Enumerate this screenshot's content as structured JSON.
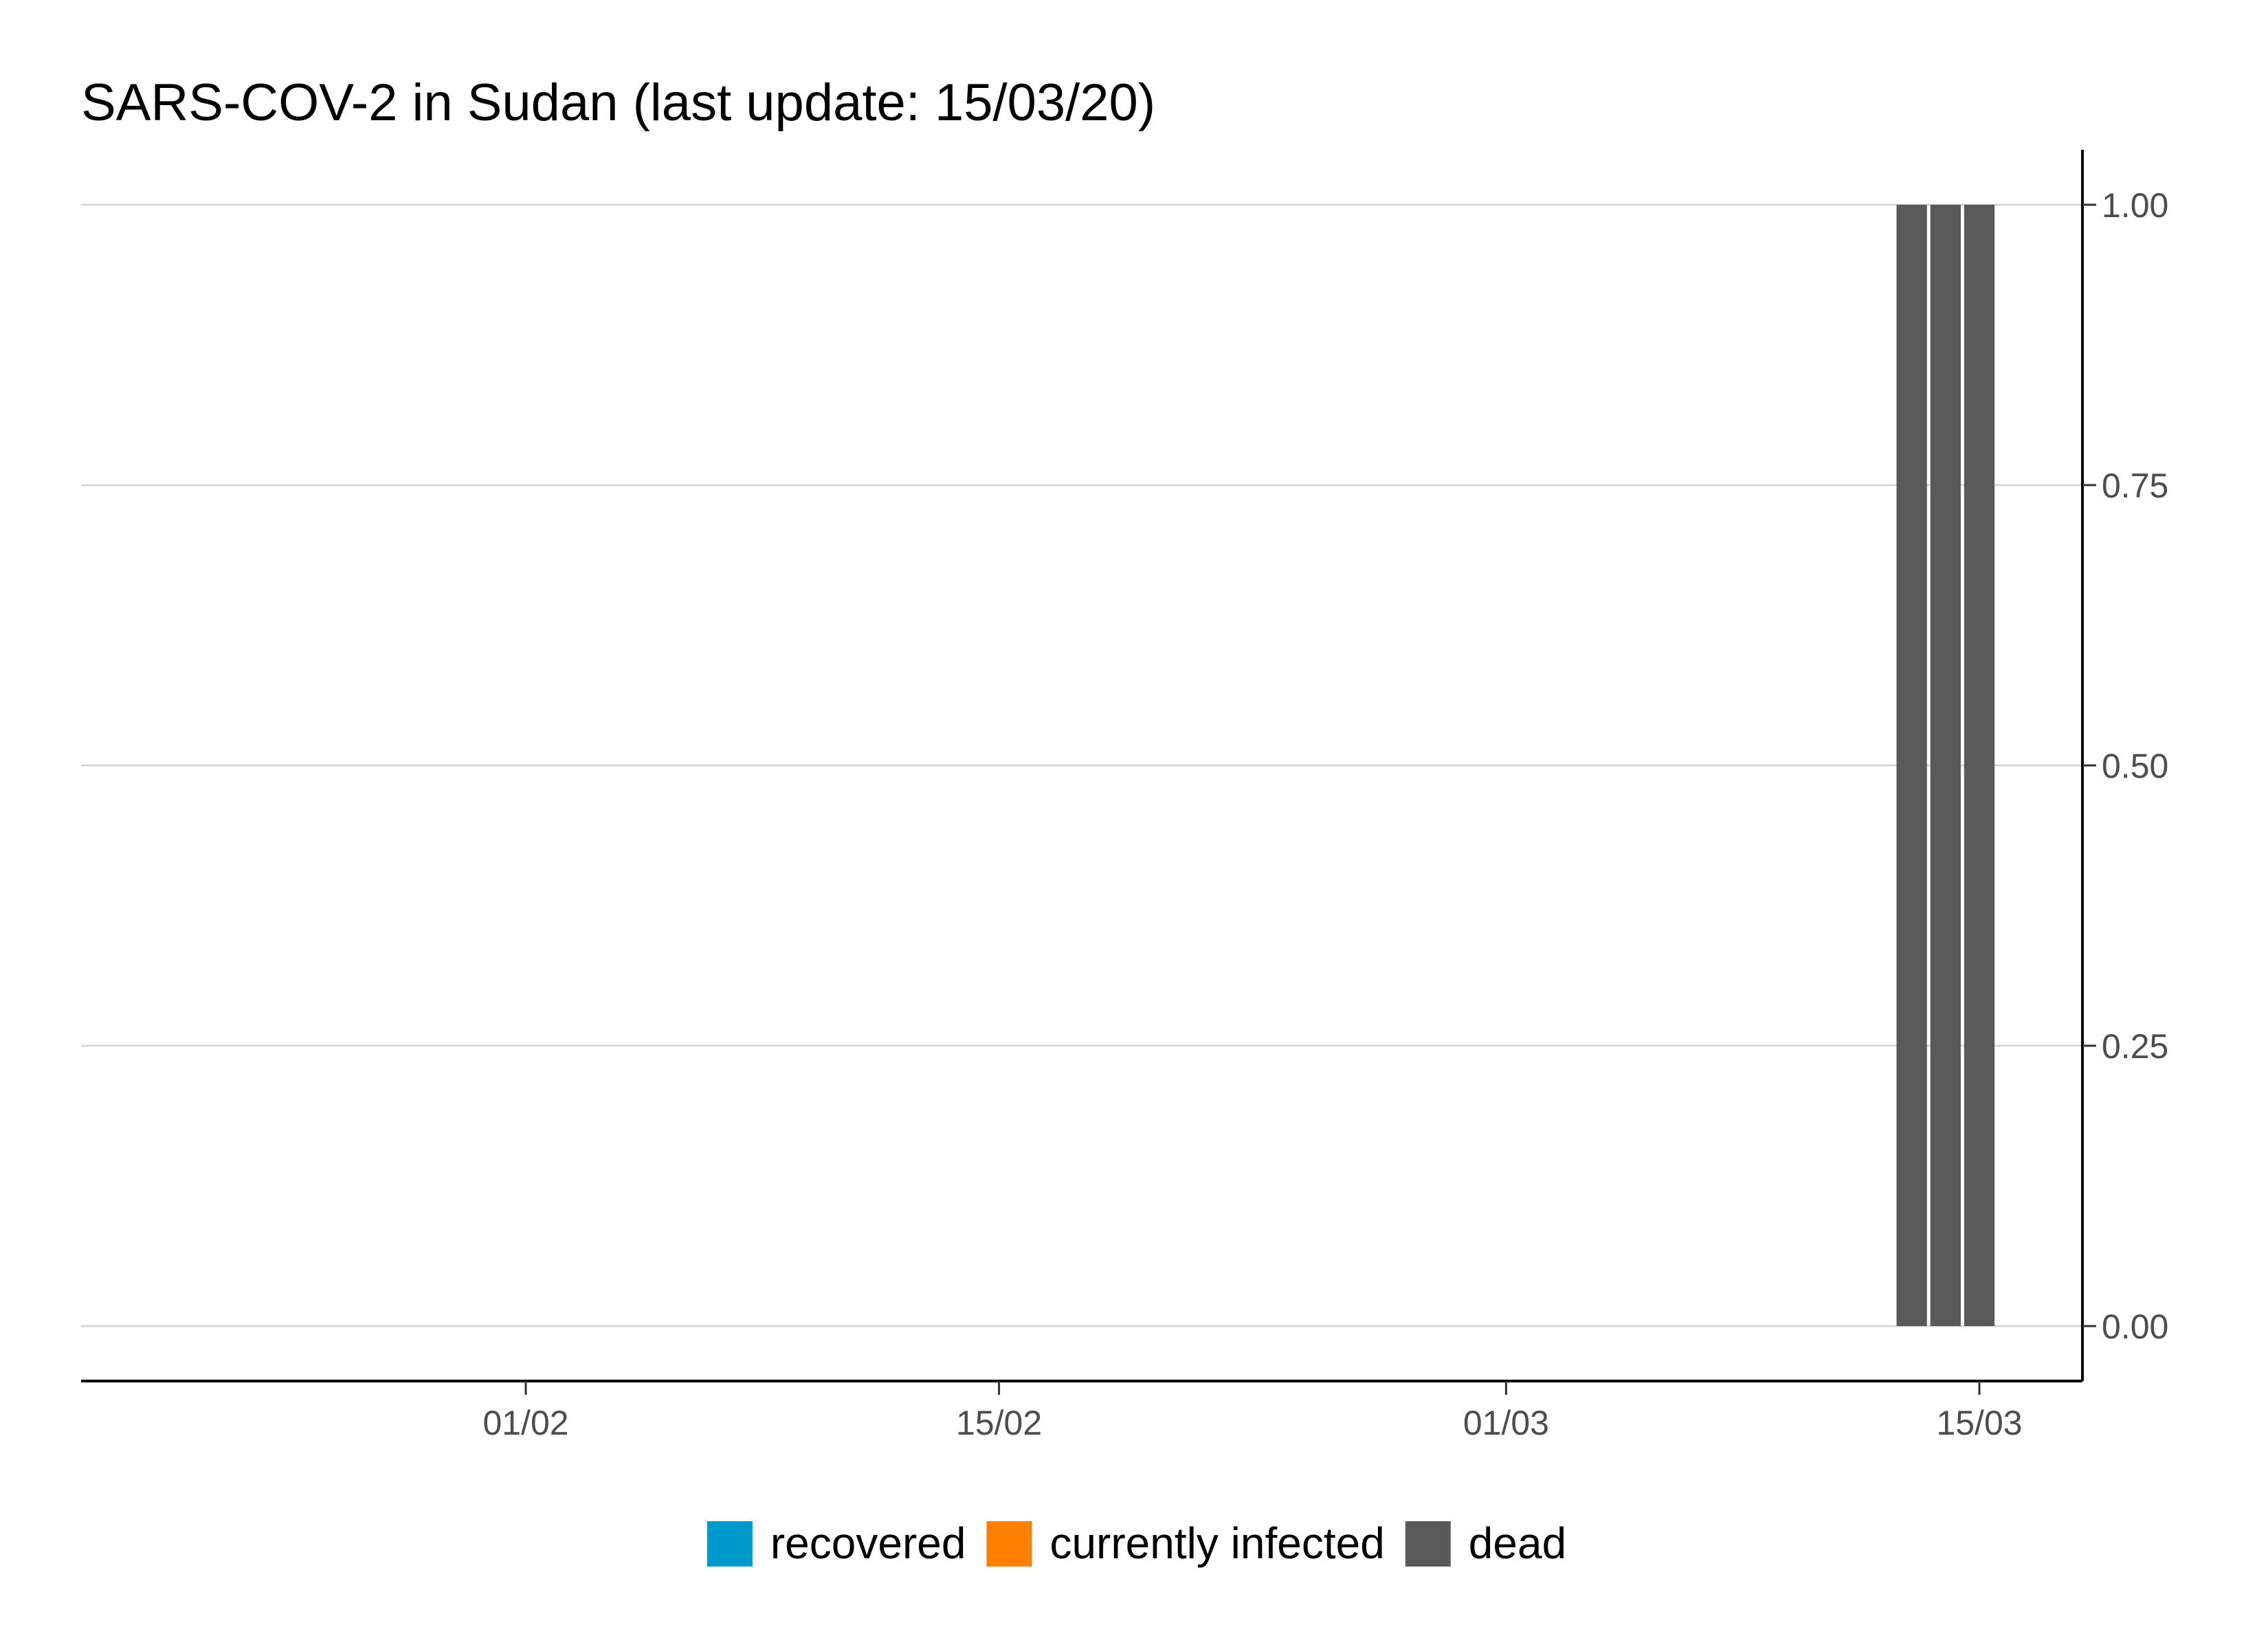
{
  "chart_data": {
    "type": "bar",
    "stacked": true,
    "title": "SARS-COV-2 in Sudan (last update: 15/03/20)",
    "xlabel": "",
    "ylabel": "",
    "x_axis": {
      "type": "date",
      "ticks": [
        {
          "date": "2020-02-01",
          "label": "01/02"
        },
        {
          "date": "2020-02-15",
          "label": "15/02"
        },
        {
          "date": "2020-03-01",
          "label": "01/03"
        },
        {
          "date": "2020-03-15",
          "label": "15/03"
        }
      ]
    },
    "y_axis": {
      "position": "right",
      "ylim": [
        0,
        1
      ],
      "ticks": [
        "0.00",
        "0.25",
        "0.50",
        "0.75",
        "1.00"
      ]
    },
    "grid": "horizontal",
    "x": [
      "2020-03-13",
      "2020-03-14",
      "2020-03-15"
    ],
    "series": [
      {
        "name": "recovered",
        "color": "#0099cc",
        "values": [
          0,
          0,
          0
        ]
      },
      {
        "name": "currently infected",
        "color": "#ff7f00",
        "values": [
          0,
          0,
          0
        ]
      },
      {
        "name": "dead",
        "color": "#595959",
        "values": [
          1,
          1,
          1
        ]
      }
    ],
    "legend": {
      "position": "bottom",
      "items": [
        {
          "label": "recovered",
          "color": "#0099cc"
        },
        {
          "label": "currently infected",
          "color": "#ff7f00"
        },
        {
          "label": "dead",
          "color": "#595959"
        }
      ]
    }
  }
}
